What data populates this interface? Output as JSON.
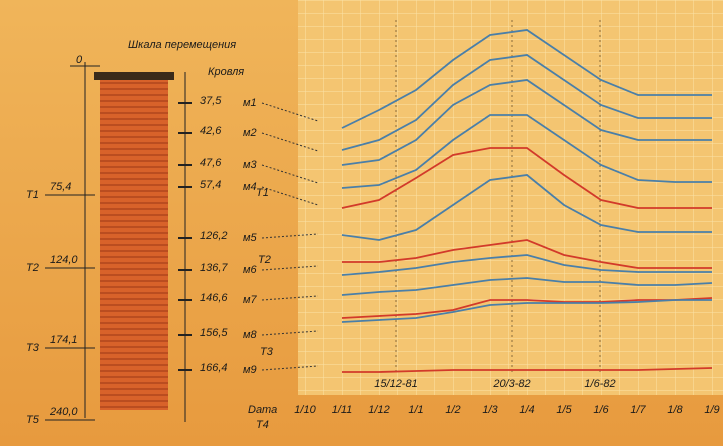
{
  "diagram": {
    "title": "Шкала перемещения",
    "top_label": "Кровля",
    "zero": "0",
    "depths": [
      "37,5",
      "42,6",
      "47,6",
      "57,4",
      "126,2",
      "136,7",
      "146,6",
      "156,5",
      "166,4"
    ],
    "marks": [
      "м1",
      "м2",
      "м3",
      "м4",
      "м5",
      "м6",
      "м7",
      "м8",
      "м9"
    ],
    "left_levels": [
      {
        "name": "T1",
        "depth": "75,4"
      },
      {
        "name": "T2",
        "depth": "124,0"
      },
      {
        "name": "T3",
        "depth": "174,1"
      },
      {
        "name": "T5",
        "depth": "240,0"
      }
    ],
    "mid_levels": [
      "T1",
      "T2",
      "T3",
      "T4"
    ]
  },
  "chart_data": {
    "type": "line",
    "x_label": "Dата",
    "categories": [
      "1/10",
      "1/11",
      "1/12",
      "1/1",
      "1/2",
      "1/3",
      "1/4",
      "1/5",
      "1/6",
      "1/7",
      "1/8",
      "1/9"
    ],
    "ylim": [
      0,
      380
    ],
    "grid": true,
    "annotations": [
      "15/12-81",
      "20/3-82",
      "1/6-82"
    ],
    "series": [
      {
        "color": "#4a7fa8",
        "values": [
          null,
          262,
          280,
          300,
          330,
          355,
          360,
          335,
          310,
          295,
          295,
          295
        ]
      },
      {
        "color": "#4a7fa8",
        "values": [
          null,
          240,
          250,
          270,
          305,
          330,
          335,
          310,
          285,
          272,
          272,
          272
        ]
      },
      {
        "color": "#4a7fa8",
        "values": [
          null,
          225,
          230,
          250,
          285,
          305,
          310,
          285,
          260,
          250,
          250,
          250
        ]
      },
      {
        "color": "#d23a2a",
        "values": [
          null,
          182,
          190,
          212,
          235,
          242,
          242,
          215,
          190,
          182,
          182,
          182
        ]
      },
      {
        "color": "#4a7fa8",
        "values": [
          null,
          202,
          205,
          220,
          250,
          275,
          275,
          250,
          225,
          210,
          208,
          208
        ]
      },
      {
        "color": "#4a7fa8",
        "values": [
          null,
          155,
          150,
          160,
          185,
          210,
          215,
          185,
          165,
          158,
          158,
          158
        ]
      },
      {
        "color": "#d23a2a",
        "values": [
          null,
          128,
          128,
          132,
          140,
          145,
          150,
          135,
          128,
          122,
          122,
          122
        ]
      },
      {
        "color": "#4a7fa8",
        "values": [
          null,
          115,
          118,
          122,
          128,
          132,
          135,
          125,
          120,
          118,
          118,
          118
        ]
      },
      {
        "color": "#4a7fa8",
        "values": [
          null,
          95,
          98,
          100,
          105,
          110,
          112,
          108,
          108,
          105,
          105,
          107
        ]
      },
      {
        "color": "#d23a2a",
        "values": [
          null,
          72,
          74,
          76,
          80,
          90,
          90,
          88,
          88,
          90,
          90,
          92
        ]
      },
      {
        "color": "#4a7fa8",
        "values": [
          null,
          68,
          70,
          72,
          78,
          85,
          87,
          87,
          87,
          88,
          90,
          90
        ]
      },
      {
        "color": "#d23a2a",
        "values": [
          null,
          18,
          18,
          19,
          20,
          20,
          20,
          20,
          20,
          20,
          21,
          22
        ]
      }
    ]
  }
}
